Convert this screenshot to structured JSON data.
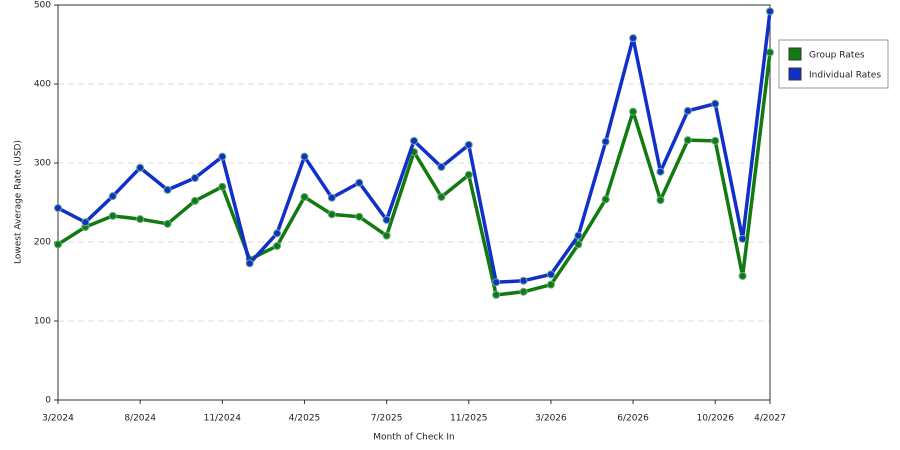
{
  "chart_data": {
    "type": "line",
    "x_label": "Month of Check In",
    "y_label": "Lowest Average Rate (USD)",
    "categories": [
      "3/2024",
      null,
      null,
      "8/2024",
      null,
      null,
      "11/2024",
      null,
      null,
      "4/2025",
      null,
      null,
      "7/2025",
      null,
      null,
      "11/2025",
      null,
      null,
      "3/2026",
      null,
      null,
      "6/2026",
      null,
      null,
      "10/2026",
      null,
      "4/2027"
    ],
    "series": [
      {
        "name": "Group Rates",
        "color": "#117a11",
        "values": [
          197,
          219,
          233,
          229,
          223,
          252,
          270,
          178,
          195,
          257,
          235,
          232,
          208,
          314,
          257,
          285,
          133,
          137,
          146,
          197,
          254,
          365,
          253,
          329,
          328,
          157,
          440
        ]
      },
      {
        "name": "Individual Rates",
        "color": "#1030c8",
        "values": [
          243,
          225,
          258,
          294,
          266,
          281,
          308,
          173,
          211,
          308,
          256,
          275,
          228,
          328,
          295,
          323,
          149,
          151,
          159,
          208,
          327,
          458,
          289,
          366,
          375,
          204,
          492
        ]
      }
    ],
    "ylim": [
      0,
      500
    ],
    "yticks": [
      0,
      100,
      200,
      300,
      400,
      500
    ],
    "grid": true,
    "legend": "right"
  }
}
